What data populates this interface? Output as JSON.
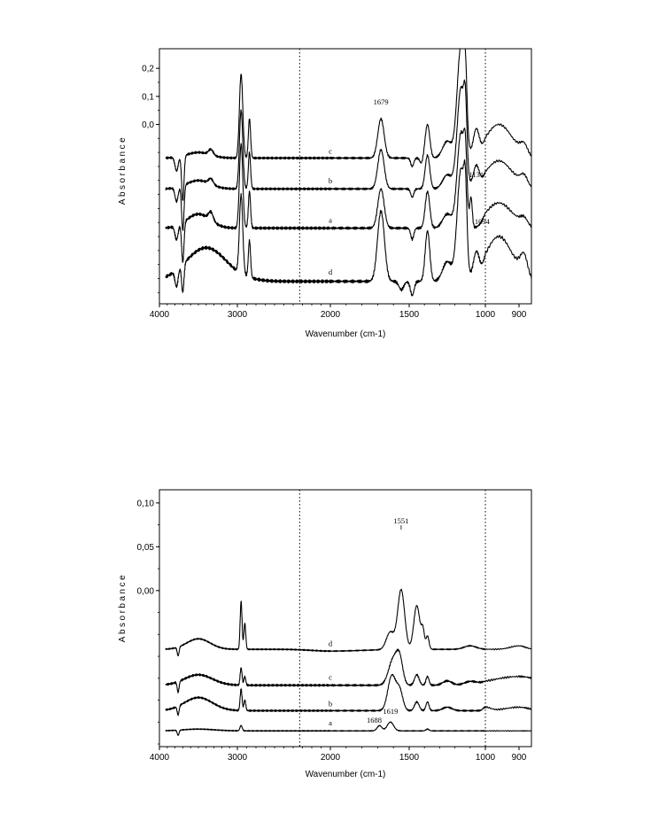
{
  "chart_data": [
    {
      "type": "line",
      "xlabel": "Wavenumber (cm-1)",
      "ylabel": "Absorbance",
      "xlim": [
        4000,
        850
      ],
      "x_ticks": [
        "4000",
        "3000",
        "2000",
        "1500",
        "1000",
        "900"
      ],
      "y_ticks": [
        "0,2",
        "0,1",
        "0,0"
      ],
      "reference_lines_x": [
        2330,
        1000
      ],
      "grid": false,
      "annotations": [
        {
          "text": "1679",
          "x": 1679
        },
        {
          "text": "1131",
          "x": 1131
        },
        {
          "text": "1094",
          "x": 1094
        }
      ],
      "series": [
        {
          "name": "c",
          "label_x": 2000,
          "baseline": -0.12,
          "shape": "c"
        },
        {
          "name": "b",
          "label_x": 2000,
          "baseline": -0.23,
          "shape": "b"
        },
        {
          "name": "a",
          "label_x": 2000,
          "baseline": -0.37,
          "shape": "a"
        },
        {
          "name": "d",
          "label_x": 2000,
          "baseline": -0.56,
          "shape": "d"
        }
      ]
    },
    {
      "type": "line",
      "xlabel": "Wavenumber (cm-1)",
      "ylabel": "Absorbance",
      "xlim": [
        4000,
        850
      ],
      "x_ticks": [
        "4000",
        "3000",
        "2000",
        "1500",
        "1000",
        "900"
      ],
      "y_ticks": [
        "0,10",
        "0,05",
        "0,00"
      ],
      "reference_lines_x": [
        2330,
        1000
      ],
      "grid": false,
      "annotations": [
        {
          "text": "1551",
          "x": 1551
        },
        {
          "text": "1619",
          "x": 1619
        },
        {
          "text": "1688",
          "x": 1688
        }
      ],
      "series": [
        {
          "name": "d",
          "label_x": 2000,
          "baseline": -0.067,
          "shape": "d2"
        },
        {
          "name": "c",
          "label_x": 2000,
          "baseline": -0.108,
          "shape": "c2"
        },
        {
          "name": "b",
          "label_x": 2000,
          "baseline": -0.137,
          "shape": "b2"
        },
        {
          "name": "a",
          "label_x": 2000,
          "baseline": -0.16,
          "shape": "a2"
        }
      ]
    }
  ]
}
